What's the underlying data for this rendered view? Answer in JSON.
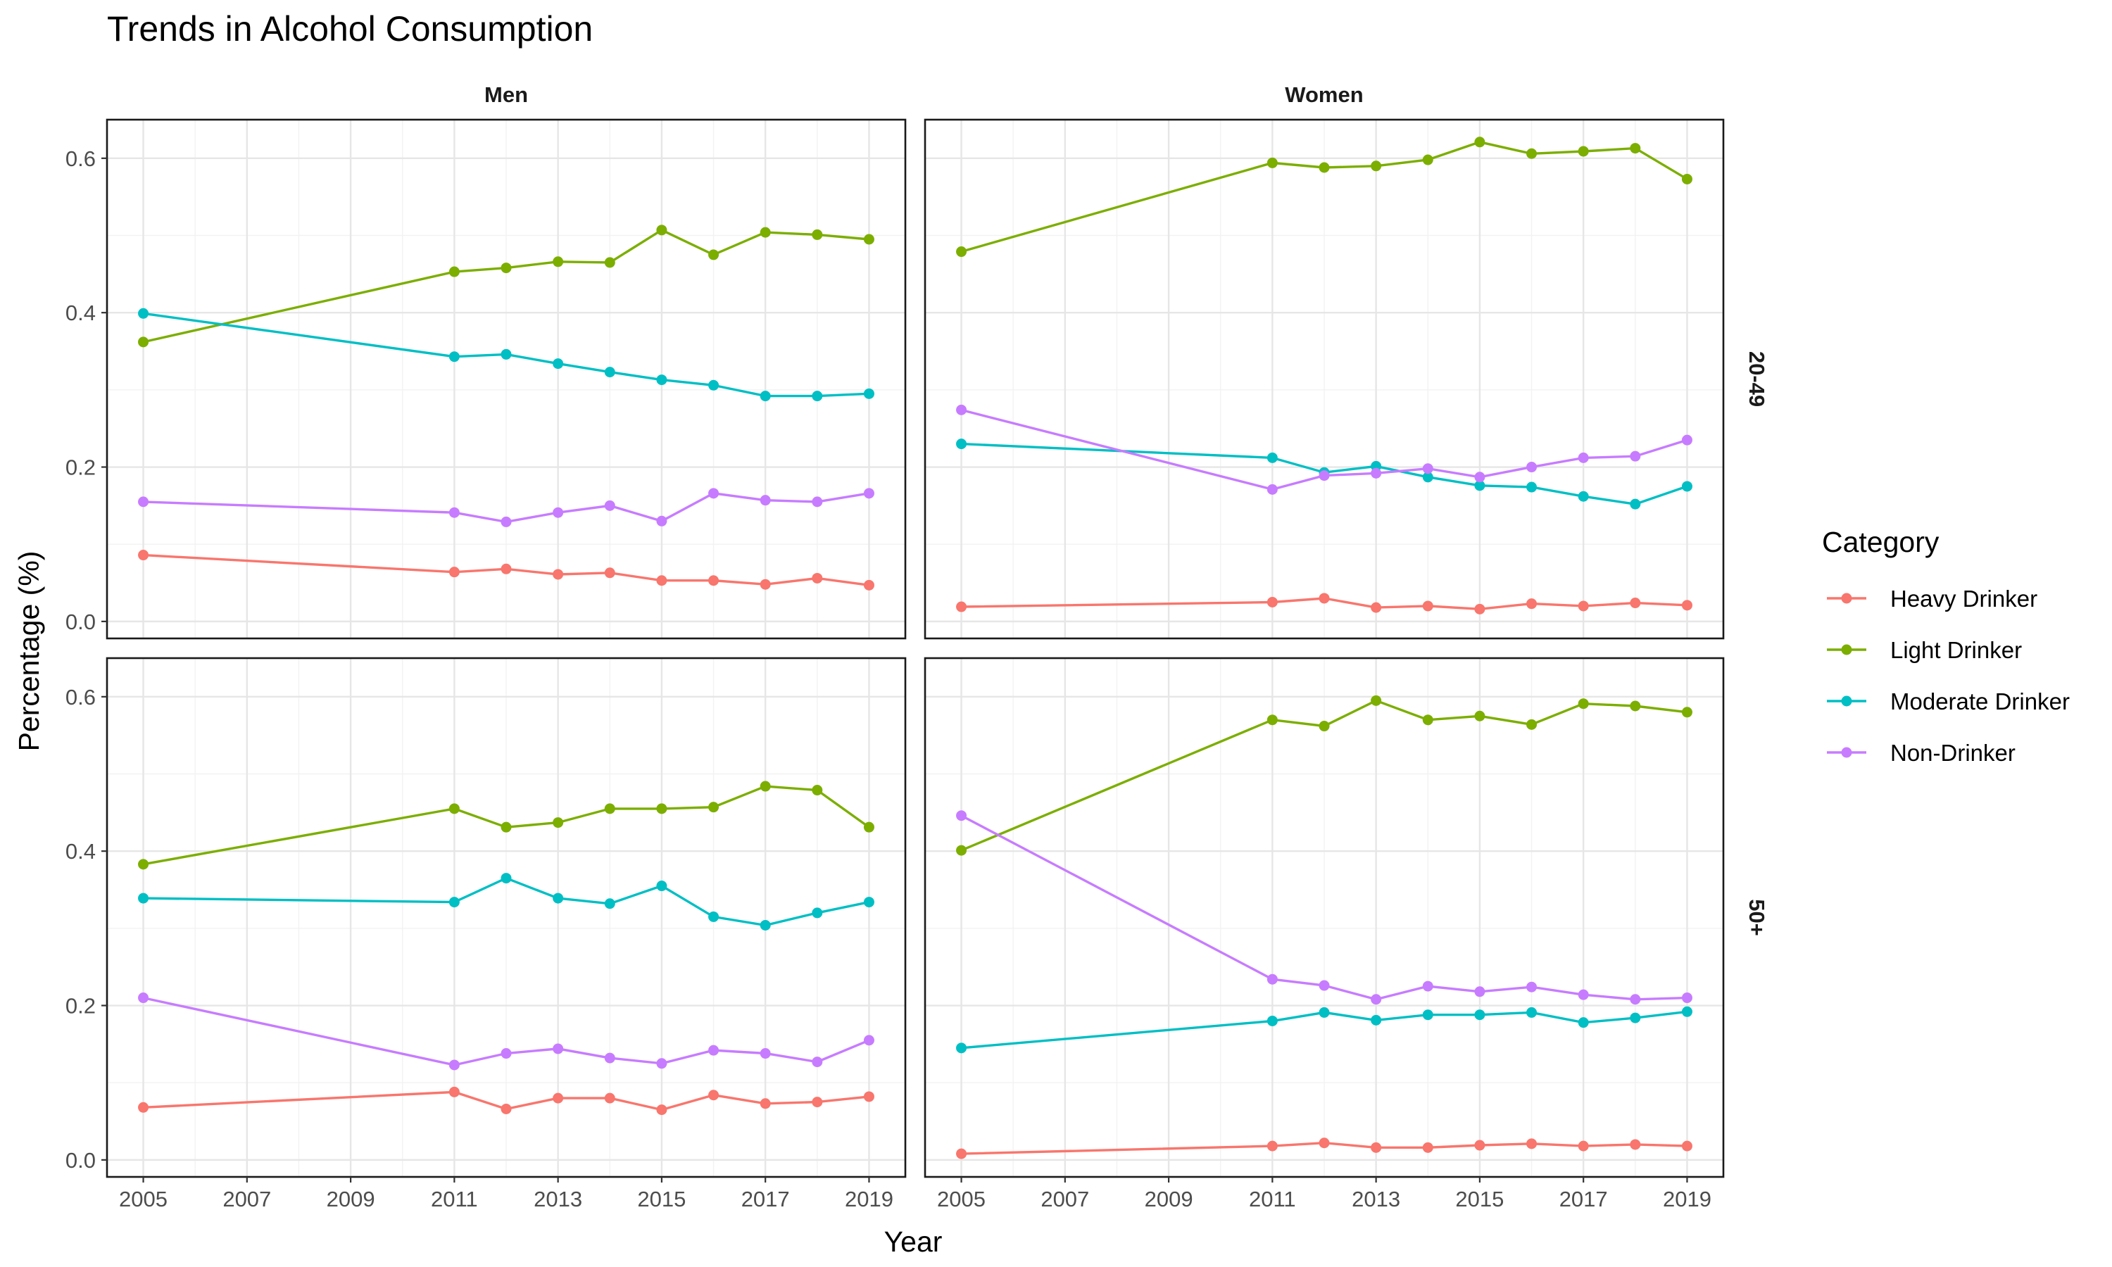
{
  "chart_data": {
    "type": "line",
    "title": "Trends in Alcohol Consumption",
    "xlabel": "Year",
    "ylabel": "Percentage (%)",
    "xlim": [
      2004.3,
      2019.7
    ],
    "ylim": [
      -0.022,
      0.65
    ],
    "x_ticks": [
      2005,
      2007,
      2009,
      2011,
      2013,
      2015,
      2017,
      2019
    ],
    "x_tick_labels": [
      "2005",
      "2007",
      "2009",
      "2011",
      "2013",
      "2015",
      "2017",
      "2019"
    ],
    "y_ticks": [
      0.0,
      0.2,
      0.4,
      0.6
    ],
    "y_tick_labels": [
      "0.0",
      "0.2",
      "0.4",
      "0.6"
    ],
    "grid": true,
    "legend": {
      "title": "Category",
      "position": "right",
      "entries": [
        "Heavy Drinker",
        "Light Drinker",
        "Moderate Drinker",
        "Non-Drinker"
      ]
    },
    "colors": {
      "Heavy Drinker": "#F8766D",
      "Light Drinker": "#7CAE00",
      "Moderate Drinker": "#00BFC4",
      "Non-Drinker": "#C77CFF"
    },
    "columns": [
      "Men",
      "Women"
    ],
    "rows": [
      "20-49",
      "50+"
    ],
    "x": [
      2005,
      2011,
      2012,
      2013,
      2014,
      2015,
      2016,
      2017,
      2018,
      2019
    ],
    "panels": [
      {
        "column": "Men",
        "row": "20-49",
        "series": [
          {
            "name": "Heavy Drinker",
            "values": [
              0.086,
              0.064,
              0.068,
              0.061,
              0.063,
              0.053,
              0.053,
              0.048,
              0.056,
              0.047
            ]
          },
          {
            "name": "Light Drinker",
            "values": [
              0.362,
              0.453,
              0.458,
              0.466,
              0.465,
              0.507,
              0.475,
              0.504,
              0.501,
              0.495
            ]
          },
          {
            "name": "Moderate Drinker",
            "values": [
              0.399,
              0.343,
              0.346,
              0.334,
              0.323,
              0.313,
              0.306,
              0.292,
              0.292,
              0.295
            ]
          },
          {
            "name": "Non-Drinker",
            "values": [
              0.155,
              0.141,
              0.129,
              0.141,
              0.15,
              0.13,
              0.166,
              0.157,
              0.155,
              0.166
            ]
          }
        ]
      },
      {
        "column": "Women",
        "row": "20-49",
        "series": [
          {
            "name": "Heavy Drinker",
            "values": [
              0.019,
              0.025,
              0.03,
              0.018,
              0.02,
              0.016,
              0.023,
              0.02,
              0.024,
              0.021
            ]
          },
          {
            "name": "Light Drinker",
            "values": [
              0.479,
              0.594,
              0.588,
              0.59,
              0.598,
              0.621,
              0.606,
              0.609,
              0.613,
              0.573
            ]
          },
          {
            "name": "Moderate Drinker",
            "values": [
              0.23,
              0.212,
              0.193,
              0.201,
              0.187,
              0.176,
              0.174,
              0.162,
              0.152,
              0.175
            ]
          },
          {
            "name": "Non-Drinker",
            "values": [
              0.274,
              0.171,
              0.189,
              0.192,
              0.198,
              0.187,
              0.2,
              0.212,
              0.214,
              0.235
            ]
          }
        ]
      },
      {
        "column": "Men",
        "row": "50+",
        "series": [
          {
            "name": "Heavy Drinker",
            "values": [
              0.068,
              0.088,
              0.066,
              0.08,
              0.08,
              0.065,
              0.084,
              0.073,
              0.075,
              0.082
            ]
          },
          {
            "name": "Light Drinker",
            "values": [
              0.383,
              0.455,
              0.431,
              0.437,
              0.455,
              0.455,
              0.457,
              0.484,
              0.479,
              0.431
            ]
          },
          {
            "name": "Moderate Drinker",
            "values": [
              0.339,
              0.334,
              0.365,
              0.339,
              0.332,
              0.355,
              0.315,
              0.304,
              0.32,
              0.334
            ]
          },
          {
            "name": "Non-Drinker",
            "values": [
              0.21,
              0.123,
              0.138,
              0.144,
              0.132,
              0.125,
              0.142,
              0.138,
              0.127,
              0.155
            ]
          }
        ]
      },
      {
        "column": "Women",
        "row": "50+",
        "series": [
          {
            "name": "Heavy Drinker",
            "values": [
              0.008,
              0.018,
              0.022,
              0.016,
              0.016,
              0.019,
              0.021,
              0.018,
              0.02,
              0.018
            ]
          },
          {
            "name": "Light Drinker",
            "values": [
              0.401,
              0.57,
              0.562,
              0.595,
              0.57,
              0.575,
              0.564,
              0.591,
              0.588,
              0.58
            ]
          },
          {
            "name": "Moderate Drinker",
            "values": [
              0.145,
              0.18,
              0.191,
              0.181,
              0.188,
              0.188,
              0.191,
              0.178,
              0.184,
              0.192
            ]
          },
          {
            "name": "Non-Drinker",
            "values": [
              0.446,
              0.234,
              0.226,
              0.208,
              0.225,
              0.218,
              0.224,
              0.214,
              0.208,
              0.21
            ]
          }
        ]
      }
    ]
  }
}
